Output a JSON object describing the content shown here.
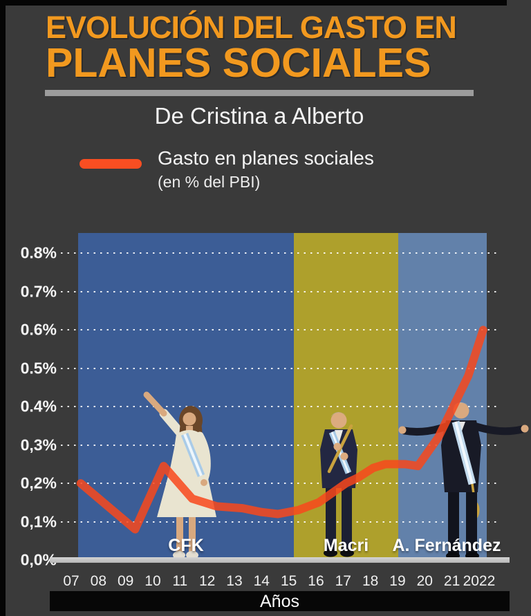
{
  "page": {
    "background": "#3a3a3a",
    "frame_color": "#050505"
  },
  "header": {
    "title_line1": "EVOLUCIÓN DEL GASTO EN",
    "title_line2": "PLANES SOCIALES",
    "title_color": "#f2991f",
    "subtitle": "De Cristina a Alberto",
    "divider_color": "#9c9c9c"
  },
  "legend": {
    "swatch_color": "#f84e22",
    "label": "Gasto en planes sociales",
    "sublabel": "(en % del PBI)"
  },
  "chart_data": {
    "type": "line",
    "title": "Gasto en planes sociales (en % del PBI)",
    "xlabel": "Años",
    "ylabel": "Gasto en planes sociales (en % del PBI)",
    "x_tick_labels": [
      "07",
      "08",
      "09",
      "10",
      "11",
      "12",
      "13",
      "14",
      "15",
      "16",
      "17",
      "18",
      "19",
      "20",
      "21",
      "2022"
    ],
    "y_tick_labels": [
      "0.8%",
      "0.7%",
      "0.6%",
      "0.5%",
      "0.4%",
      "0,3%",
      "0,2%",
      "0,1%",
      "0,0%"
    ],
    "ylim_pct": [
      0.0,
      0.85
    ],
    "grid": "horizontal-dotted-white",
    "line_color": "#f8481c",
    "series": [
      {
        "name": "Gasto en planes sociales (en % del PBI)",
        "categories": [
          2007,
          2008,
          2009,
          2010,
          2011,
          2012,
          2013,
          2014,
          2015,
          2016,
          2017,
          2018,
          2019,
          2020,
          2021,
          2022
        ],
        "values": [
          0.2,
          0.13,
          0.08,
          0.24,
          0.16,
          0.14,
          0.14,
          0.12,
          0.13,
          0.15,
          0.21,
          0.24,
          0.25,
          0.3,
          0.45,
          0.6
        ]
      }
    ],
    "render_polyline_year_pct": [
      [
        7.35,
        0.2
      ],
      [
        8.6,
        0.125
      ],
      [
        9.35,
        0.08
      ],
      [
        10.4,
        0.245
      ],
      [
        11.45,
        0.16
      ],
      [
        12.35,
        0.14
      ],
      [
        13.3,
        0.135
      ],
      [
        14.0,
        0.125
      ],
      [
        14.6,
        0.12
      ],
      [
        15.35,
        0.13
      ],
      [
        16.1,
        0.15
      ],
      [
        17.1,
        0.2
      ],
      [
        17.55,
        0.215
      ],
      [
        18.1,
        0.24
      ],
      [
        18.55,
        0.25
      ],
      [
        19.3,
        0.25
      ],
      [
        19.75,
        0.245
      ],
      [
        20.5,
        0.32
      ],
      [
        21.6,
        0.48
      ],
      [
        22.15,
        0.6
      ]
    ],
    "regions": [
      {
        "label": "CFK",
        "years": "2007-2015",
        "color": "#3c5d96"
      },
      {
        "label": "Macri",
        "years": "2016-2019",
        "color": "#aea02c"
      },
      {
        "label": "A. Fernández",
        "years": "2020-2022",
        "color": "#6281aa"
      }
    ]
  }
}
